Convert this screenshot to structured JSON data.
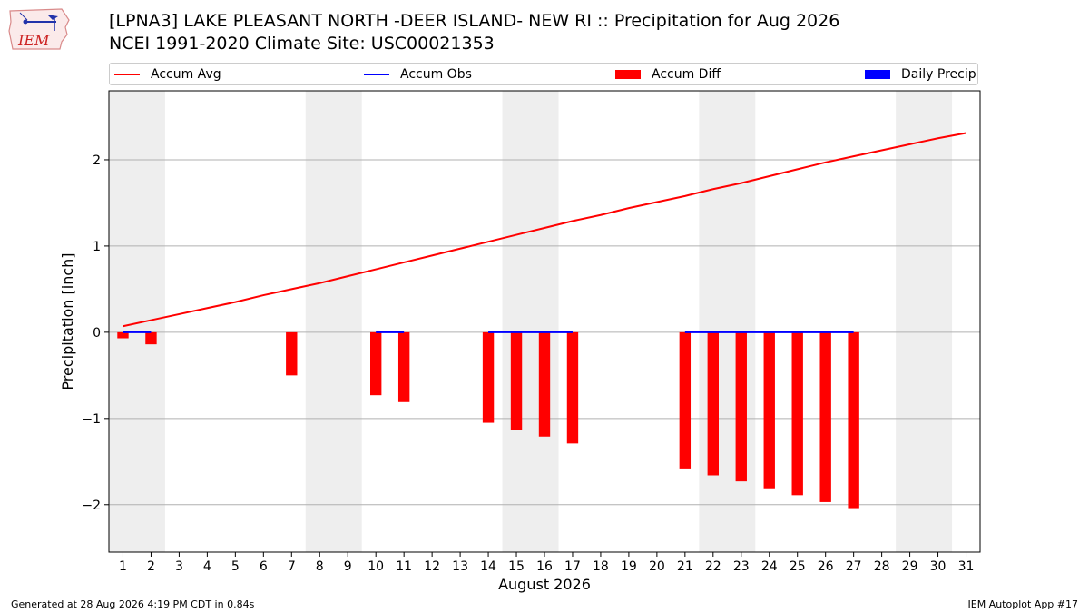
{
  "header": {
    "title_line1": "[LPNA3] LAKE PLEASANT NORTH -DEER ISLAND- NEW RI :: Precipitation for Aug 2026",
    "title_line2": "NCEI 1991-2020 Climate Site: USC00021353",
    "logo_text": "IEM"
  },
  "footer": {
    "left": "Generated at 28 Aug 2026 4:19 PM CDT in 0.84s",
    "right": "IEM Autoplot App #17"
  },
  "colors": {
    "accum_avg": "#ff0000",
    "accum_obs": "#0000ff",
    "accum_diff": "#ff0000",
    "daily_precip": "#0000ff",
    "weekend_band": "#eeeeee",
    "grid": "#b0b0b0"
  },
  "chart_data": {
    "type": "bar",
    "xlabel": "August 2026",
    "ylabel": "Precipitation [inch]",
    "xlim": [
      0.5,
      31.5
    ],
    "ylim": [
      -2.55,
      2.8
    ],
    "yticks": [
      -2,
      -1,
      0,
      1,
      2
    ],
    "ytick_labels": [
      "−2",
      "−1",
      "0",
      "1",
      "2"
    ],
    "xticks": [
      1,
      2,
      3,
      4,
      5,
      6,
      7,
      8,
      9,
      10,
      11,
      12,
      13,
      14,
      15,
      16,
      17,
      18,
      19,
      20,
      21,
      22,
      23,
      24,
      25,
      26,
      27,
      28,
      29,
      30,
      31
    ],
    "grid": "horizontal",
    "weekend_bands": [
      [
        0.5,
        2.5
      ],
      [
        7.5,
        9.5
      ],
      [
        14.5,
        16.5
      ],
      [
        21.5,
        23.5
      ],
      [
        28.5,
        30.5
      ]
    ],
    "legend": {
      "placement": "top, above plot",
      "entries": [
        "Accum Avg",
        "Accum Obs",
        "Accum Diff",
        "Daily Precip"
      ]
    },
    "accum_avg": {
      "name": "Accum Avg",
      "x": [
        1,
        2,
        3,
        4,
        5,
        6,
        7,
        8,
        9,
        10,
        11,
        12,
        13,
        14,
        15,
        16,
        17,
        18,
        19,
        20,
        21,
        22,
        23,
        24,
        25,
        26,
        27,
        28,
        29,
        30,
        31
      ],
      "values": [
        0.07,
        0.14,
        0.21,
        0.28,
        0.35,
        0.43,
        0.5,
        0.57,
        0.65,
        0.73,
        0.81,
        0.89,
        0.97,
        1.05,
        1.13,
        1.21,
        1.29,
        1.36,
        1.44,
        1.51,
        1.58,
        1.66,
        1.73,
        1.81,
        1.89,
        1.97,
        2.04,
        2.11,
        2.18,
        2.25,
        2.31
      ]
    },
    "accum_obs": {
      "name": "Accum Obs",
      "segments": [
        {
          "x": [
            1,
            2
          ],
          "values": [
            0,
            0
          ]
        },
        {
          "x": [
            10,
            11
          ],
          "values": [
            0,
            0
          ]
        },
        {
          "x": [
            14,
            17
          ],
          "values": [
            0,
            0
          ]
        },
        {
          "x": [
            21,
            27
          ],
          "values": [
            0,
            0
          ]
        }
      ]
    },
    "accum_diff": {
      "name": "Accum Diff",
      "x": [
        1,
        2,
        7,
        10,
        11,
        14,
        15,
        16,
        17,
        21,
        22,
        23,
        24,
        25,
        26,
        27
      ],
      "values": [
        -0.07,
        -0.14,
        -0.5,
        -0.73,
        -0.81,
        -1.05,
        -1.13,
        -1.21,
        -1.29,
        -1.58,
        -1.66,
        -1.73,
        -1.81,
        -1.89,
        -1.97,
        -2.04
      ]
    },
    "daily_precip": {
      "name": "Daily Precip",
      "x": [],
      "values": []
    }
  }
}
